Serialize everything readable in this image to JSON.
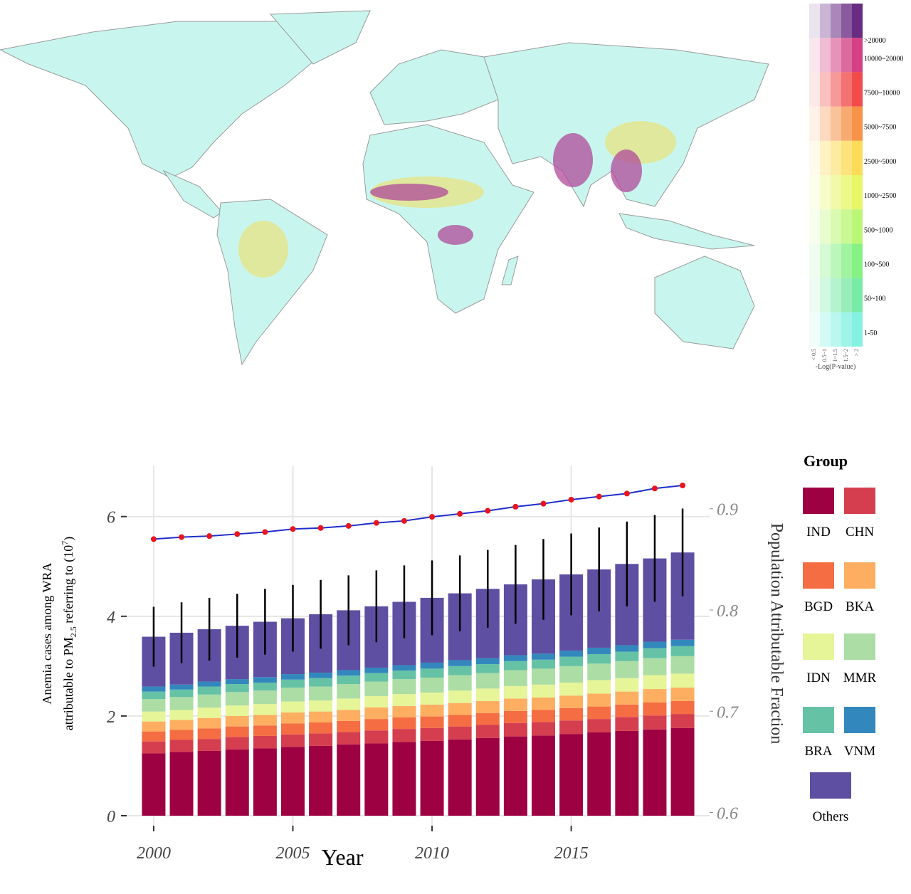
{
  "map": {
    "legend_labels": [
      ">20000",
      "10000~20000",
      "7500~10000",
      "5000~7500",
      "2500~5000",
      "1000~2500",
      "500~1000",
      "100~500",
      "50~100",
      "1-50"
    ],
    "legend_colors": [
      "#5b1a78",
      "#d0307a",
      "#f03c3c",
      "#f58a3a",
      "#fbd84a",
      "#e4f55a",
      "#b6f56a",
      "#7df07a",
      "#6fe8a0",
      "#7af0e0"
    ],
    "column_labels": [
      "< 0.5",
      "0.5~1",
      "1~1.5",
      "1.5~2",
      "> 2"
    ],
    "column_title": "-Log(P-value)"
  },
  "chart_data": {
    "type": "bar",
    "stacked": true,
    "x": [
      2000,
      2001,
      2002,
      2003,
      2004,
      2005,
      2006,
      2007,
      2008,
      2009,
      2010,
      2011,
      2012,
      2013,
      2014,
      2015,
      2016,
      2017,
      2018,
      2019
    ],
    "series": [
      {
        "name": "IND",
        "color": "#9e0142",
        "values": [
          1.25,
          1.28,
          1.3,
          1.33,
          1.35,
          1.38,
          1.4,
          1.43,
          1.45,
          1.48,
          1.5,
          1.53,
          1.56,
          1.59,
          1.61,
          1.64,
          1.67,
          1.7,
          1.73,
          1.76
        ]
      },
      {
        "name": "CHN",
        "color": "#d53e4f",
        "values": [
          0.24,
          0.24,
          0.24,
          0.25,
          0.25,
          0.25,
          0.25,
          0.25,
          0.26,
          0.26,
          0.26,
          0.26,
          0.26,
          0.27,
          0.27,
          0.27,
          0.27,
          0.28,
          0.28,
          0.28
        ]
      },
      {
        "name": "BGD",
        "color": "#f46d43",
        "values": [
          0.2,
          0.2,
          0.21,
          0.21,
          0.21,
          0.22,
          0.22,
          0.22,
          0.23,
          0.23,
          0.23,
          0.23,
          0.24,
          0.24,
          0.24,
          0.25,
          0.25,
          0.25,
          0.26,
          0.26
        ]
      },
      {
        "name": "BKA",
        "color": "#fdae61",
        "values": [
          0.2,
          0.2,
          0.21,
          0.21,
          0.21,
          0.22,
          0.22,
          0.22,
          0.23,
          0.23,
          0.24,
          0.24,
          0.24,
          0.25,
          0.25,
          0.25,
          0.26,
          0.26,
          0.27,
          0.27
        ]
      },
      {
        "name": "IDN",
        "color": "#e6f598",
        "values": [
          0.2,
          0.2,
          0.21,
          0.21,
          0.22,
          0.22,
          0.22,
          0.23,
          0.23,
          0.24,
          0.24,
          0.25,
          0.25,
          0.25,
          0.26,
          0.26,
          0.27,
          0.27,
          0.28,
          0.28
        ]
      },
      {
        "name": "MMR",
        "color": "#abdda4",
        "values": [
          0.25,
          0.26,
          0.26,
          0.27,
          0.27,
          0.28,
          0.28,
          0.29,
          0.29,
          0.3,
          0.3,
          0.31,
          0.31,
          0.32,
          0.32,
          0.33,
          0.33,
          0.34,
          0.34,
          0.35
        ]
      },
      {
        "name": "BRA",
        "color": "#66c2a5",
        "values": [
          0.15,
          0.15,
          0.16,
          0.16,
          0.16,
          0.16,
          0.17,
          0.17,
          0.17,
          0.17,
          0.18,
          0.18,
          0.18,
          0.18,
          0.18,
          0.19,
          0.19,
          0.19,
          0.2,
          0.2
        ]
      },
      {
        "name": "VNM",
        "color": "#3288bd",
        "values": [
          0.1,
          0.1,
          0.1,
          0.1,
          0.11,
          0.11,
          0.11,
          0.11,
          0.11,
          0.11,
          0.12,
          0.12,
          0.12,
          0.12,
          0.12,
          0.12,
          0.13,
          0.13,
          0.13,
          0.13
        ]
      },
      {
        "name": "Others",
        "color": "#5e4fa2",
        "values": [
          1.0,
          1.04,
          1.05,
          1.07,
          1.11,
          1.12,
          1.17,
          1.2,
          1.23,
          1.27,
          1.3,
          1.34,
          1.39,
          1.42,
          1.49,
          1.53,
          1.57,
          1.63,
          1.67,
          1.75
        ]
      }
    ],
    "error": [
      0.6,
      0.61,
      0.63,
      0.64,
      0.66,
      0.67,
      0.69,
      0.7,
      0.72,
      0.73,
      0.75,
      0.76,
      0.78,
      0.79,
      0.81,
      0.82,
      0.84,
      0.85,
      0.87,
      0.88
    ],
    "line_values": [
      0.87,
      0.872,
      0.873,
      0.875,
      0.877,
      0.88,
      0.881,
      0.883,
      0.886,
      0.888,
      0.892,
      0.895,
      0.898,
      0.902,
      0.905,
      0.909,
      0.912,
      0.915,
      0.92,
      0.923
    ],
    "line_color": "#1f2ecc",
    "point_color": "#e8141e",
    "xlim": [
      1999.03,
      2019.97
    ],
    "xticks": [
      2000,
      2005,
      2010,
      2015
    ],
    "ylim": [
      -0.2,
      7.01
    ],
    "yticks": [
      0,
      2,
      4,
      6
    ],
    "y2lim": [
      0.587,
      0.942
    ],
    "y2ticks": [
      0.6,
      0.7,
      0.8,
      0.9
    ],
    "grid": true,
    "x_label": "Year",
    "y_label": [
      "Anemia cases among WRA",
      "attributable to PM",
      "2.5",
      " referring to  (10",
      "7",
      ")"
    ],
    "y2_label": "Population Attributable Fraction",
    "legend_title": "Group"
  }
}
